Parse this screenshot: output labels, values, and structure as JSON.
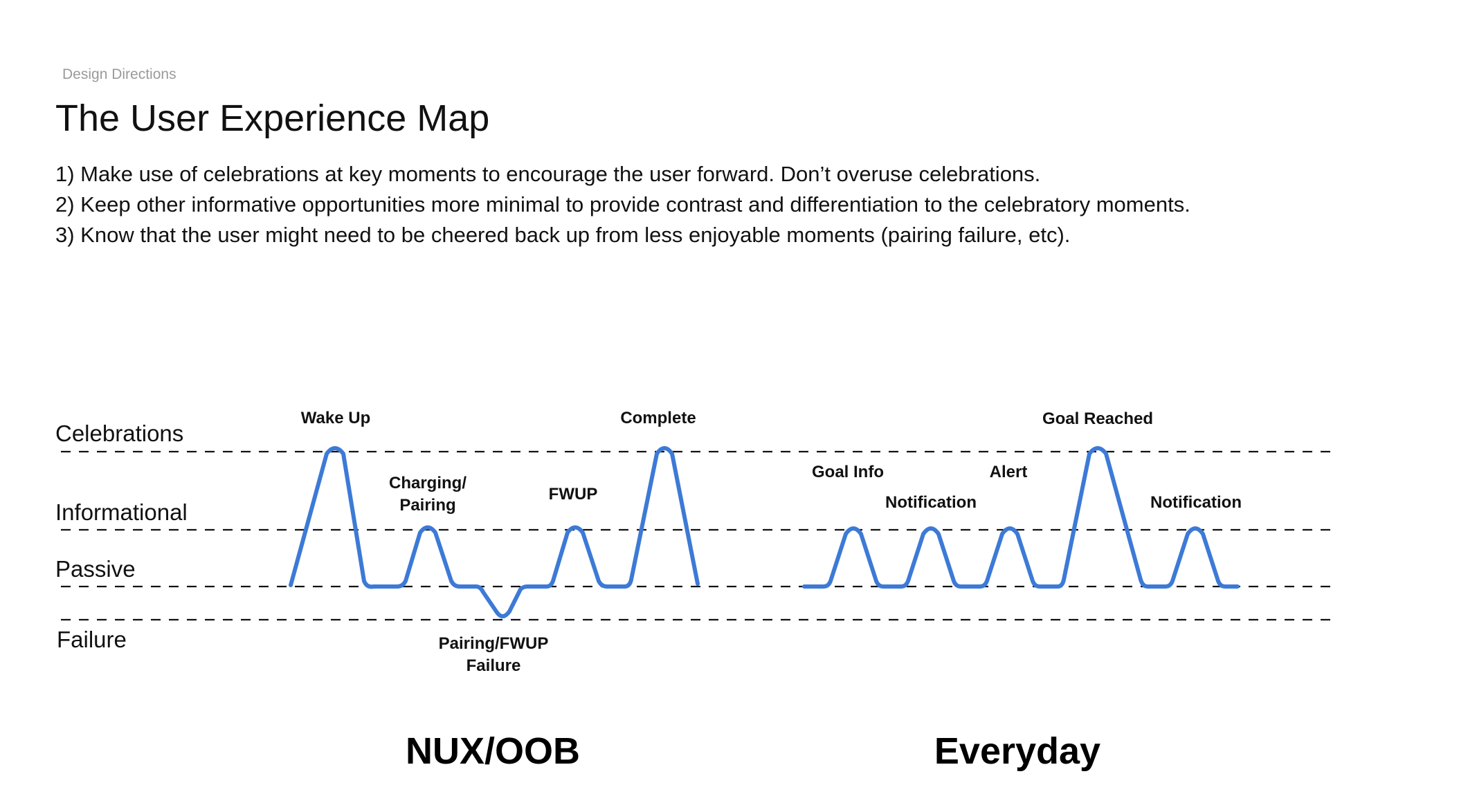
{
  "header": {
    "kicker": "Design Directions",
    "title": "The User Experience Map",
    "points": [
      "1) Make use of celebrations at key moments to encourage the user forward. Don’t overuse celebrations.",
      "2) Keep other informative opportunities more minimal to provide contrast and differentiation to the celebratory moments.",
      "3) Know that the user might need to be cheered back up from less enjoyable moments (pairing failure, etc)."
    ]
  },
  "levels": [
    "Celebrations",
    "Informational",
    "Passive",
    "Failure"
  ],
  "colors": {
    "curve": "#3d7ad6",
    "dash": "#111111",
    "text": "#111111"
  },
  "sections": [
    {
      "title": "NUX/OOB",
      "moments": [
        {
          "label": "Wake Up",
          "level": "Celebrations"
        },
        {
          "label": "Charging/ Pairing",
          "level": "Informational"
        },
        {
          "label": "Pairing/FWUP Failure",
          "level": "Failure"
        },
        {
          "label": "FWUP",
          "level": "Informational"
        },
        {
          "label": "Complete",
          "level": "Celebrations"
        }
      ]
    },
    {
      "title": "Everyday",
      "moments": [
        {
          "label": "Goal Info",
          "level": "Informational"
        },
        {
          "label": "Notification",
          "level": "Informational"
        },
        {
          "label": "Alert",
          "level": "Informational"
        },
        {
          "label": "Goal Reached",
          "level": "Celebrations"
        },
        {
          "label": "Notification",
          "level": "Informational"
        }
      ]
    }
  ],
  "annotation_lines": {
    "charging_1": "Charging/",
    "charging_2": "Pairing",
    "failure_1": "Pairing/FWUP",
    "failure_2": "Failure"
  }
}
